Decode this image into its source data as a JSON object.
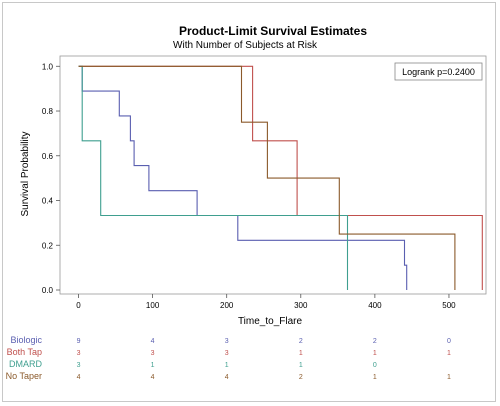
{
  "chart_data": {
    "type": "line",
    "step": true,
    "title": "Product-Limit Survival Estimates",
    "subtitle": "With Number of Subjects at Risk",
    "xlabel": "Time_to_Flare",
    "ylabel": "Survival Probability",
    "xlim": [
      -25,
      550
    ],
    "ylim": [
      0,
      1
    ],
    "x_ticks": [
      0,
      100,
      200,
      300,
      400,
      500
    ],
    "y_ticks": [
      0.0,
      0.2,
      0.4,
      0.6,
      0.8,
      1.0
    ],
    "x_tick_labels": [
      "0",
      "100",
      "200",
      "300",
      "400",
      "500"
    ],
    "y_tick_labels": [
      "0.0",
      "0.2",
      "0.4",
      "0.6",
      "0.8",
      "1.0"
    ],
    "legend_text": "Logrank p=0.2400",
    "legend_position": "top-right",
    "series": [
      {
        "name": "Biologic",
        "color": "#5a5fb0",
        "points": [
          [
            0,
            1.0
          ],
          [
            5,
            1.0
          ],
          [
            5,
            0.889
          ],
          [
            55,
            0.889
          ],
          [
            55,
            0.778
          ],
          [
            70,
            0.778
          ],
          [
            70,
            0.667
          ],
          [
            75,
            0.667
          ],
          [
            75,
            0.556
          ],
          [
            95,
            0.556
          ],
          [
            95,
            0.444
          ],
          [
            160,
            0.444
          ],
          [
            160,
            0.333
          ],
          [
            215,
            0.333
          ],
          [
            215,
            0.222
          ],
          [
            440,
            0.222
          ],
          [
            440,
            0.111
          ],
          [
            443,
            0.111
          ],
          [
            443,
            0.0
          ]
        ]
      },
      {
        "name": "Both Tap",
        "color": "#c0504d",
        "points": [
          [
            0,
            1.0
          ],
          [
            235,
            1.0
          ],
          [
            235,
            0.667
          ],
          [
            295,
            0.667
          ],
          [
            295,
            0.333
          ],
          [
            545,
            0.333
          ],
          [
            545,
            0.0
          ]
        ]
      },
      {
        "name": "DMARD",
        "color": "#3f9f8f",
        "points": [
          [
            0,
            1.0
          ],
          [
            5,
            1.0
          ],
          [
            5,
            0.667
          ],
          [
            30,
            0.667
          ],
          [
            30,
            0.333
          ],
          [
            363,
            0.333
          ],
          [
            363,
            0.0
          ]
        ]
      },
      {
        "name": "No Taper",
        "color": "#8b5a2b",
        "points": [
          [
            0,
            1.0
          ],
          [
            220,
            1.0
          ],
          [
            220,
            0.75
          ],
          [
            255,
            0.75
          ],
          [
            255,
            0.5
          ],
          [
            352,
            0.5
          ],
          [
            352,
            0.25
          ],
          [
            508,
            0.25
          ],
          [
            508,
            0.0
          ]
        ]
      }
    ],
    "at_risk": {
      "times": [
        0,
        100,
        200,
        300,
        400,
        500
      ],
      "groups": [
        {
          "label": "Biologic",
          "color": "#5a5fb0",
          "values": [
            "9",
            "4",
            "3",
            "2",
            "2",
            "0"
          ]
        },
        {
          "label": "Both Tap",
          "color": "#c0504d",
          "values": [
            "3",
            "3",
            "3",
            "1",
            "1",
            "1"
          ]
        },
        {
          "label": "DMARD",
          "color": "#3f9f8f",
          "values": [
            "3",
            "1",
            "1",
            "1",
            "0",
            ""
          ]
        },
        {
          "label": "No Taper",
          "color": "#8b5a2b",
          "values": [
            "4",
            "4",
            "4",
            "2",
            "1",
            "1"
          ]
        }
      ]
    }
  }
}
